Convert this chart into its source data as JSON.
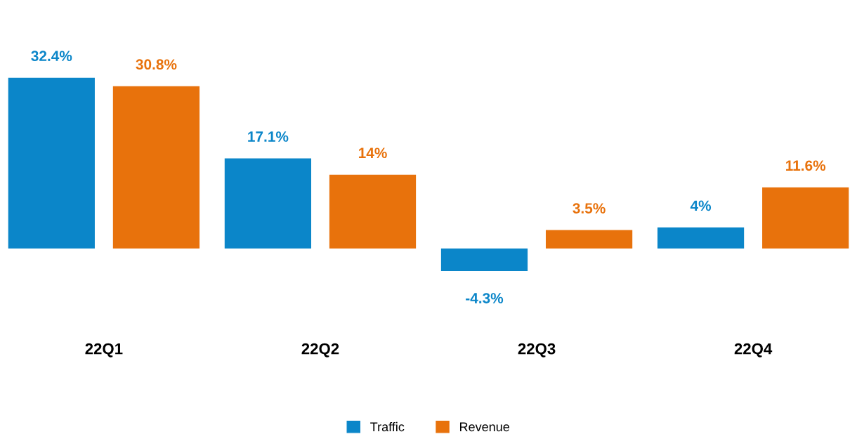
{
  "chart_data": {
    "type": "bar",
    "categories": [
      "22Q1",
      "22Q2",
      "22Q3",
      "22Q4"
    ],
    "series": [
      {
        "name": "Traffic",
        "color": "#0b86c9",
        "values": [
          32.4,
          17.1,
          -4.3,
          4
        ],
        "value_labels": [
          "32.4%",
          "17.1%",
          "-4.3%",
          "4%"
        ]
      },
      {
        "name": "Revenue",
        "color": "#e8720c",
        "values": [
          30.8,
          14,
          3.5,
          11.6
        ],
        "value_labels": [
          "30.8%",
          "14%",
          "3.5%",
          "11.6%"
        ]
      }
    ],
    "legend": "bottom"
  }
}
